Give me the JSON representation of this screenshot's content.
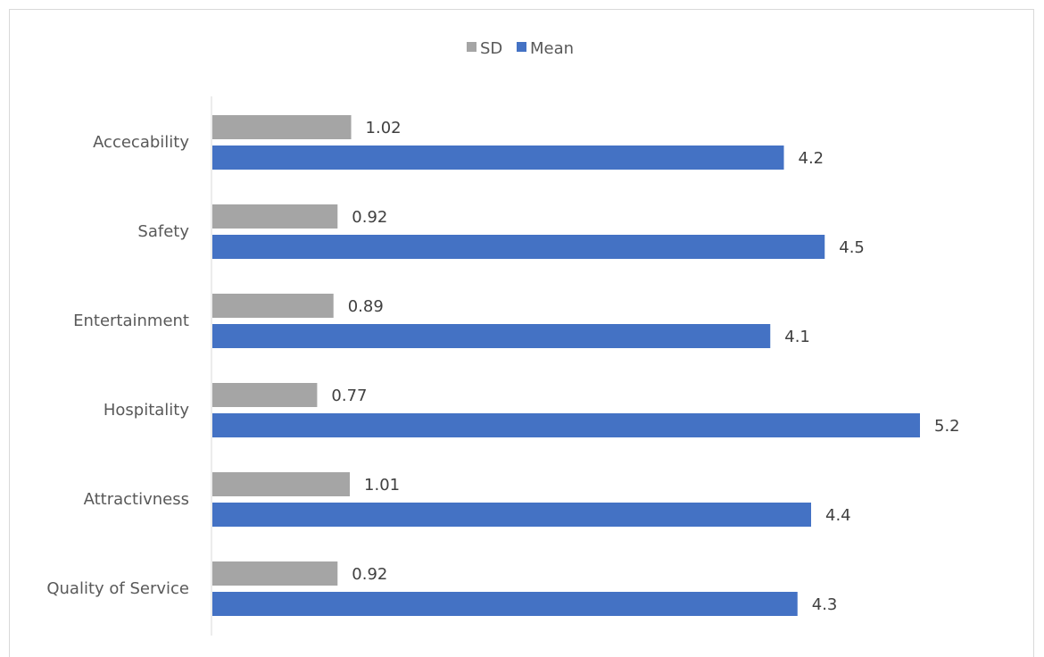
{
  "chart_data": {
    "type": "bar",
    "orientation": "horizontal",
    "categories": [
      "Accecability",
      "Safety",
      "Entertainment",
      "Hospitality",
      "Attractivness",
      "Quality of Service"
    ],
    "series": [
      {
        "name": "SD",
        "color": "#a5a5a5",
        "values": [
          1.02,
          0.92,
          0.89,
          0.77,
          1.01,
          0.92
        ]
      },
      {
        "name": "Mean",
        "color": "#4472c4",
        "values": [
          4.2,
          4.5,
          4.1,
          5.2,
          4.4,
          4.3
        ]
      }
    ],
    "value_labels": {
      "SD": [
        "1.02",
        "0.92",
        "0.89",
        "0.77",
        "1.01",
        "0.92"
      ],
      "Mean": [
        "4.2",
        "4.5",
        "4.1",
        "5.2",
        "4.4",
        "4.3"
      ]
    },
    "xlim": [
      0,
      6
    ],
    "grid": false,
    "legend_position": "top",
    "title": "",
    "xlabel": "",
    "ylabel": ""
  }
}
